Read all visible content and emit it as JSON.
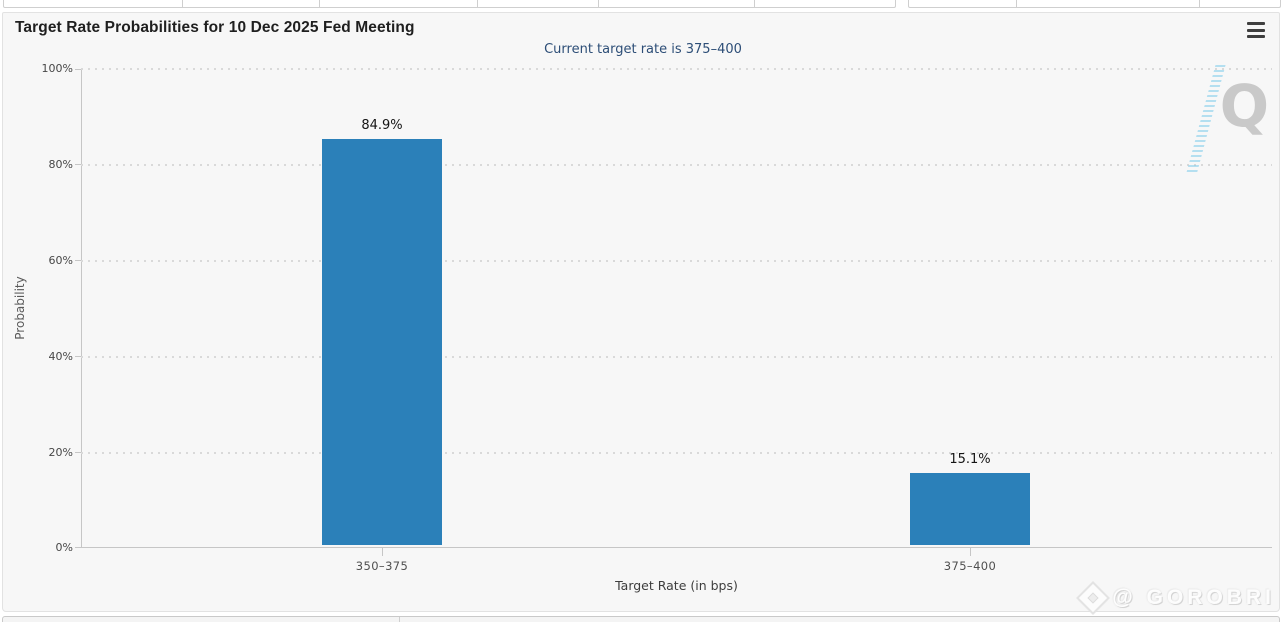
{
  "header": {
    "title": "Target Rate Probabilities for 10 Dec 2025 Fed Meeting",
    "menu_icon": "hamburger-menu-icon"
  },
  "chart_data": {
    "type": "bar",
    "title": "Target Rate Probabilities for 10 Dec 2025 Fed Meeting",
    "subtitle": "Current target rate is 375–400",
    "categories": [
      "350–375",
      "375–400"
    ],
    "values": [
      84.9,
      15.1
    ],
    "value_labels": [
      "84.9%",
      "15.1%"
    ],
    "xlabel": "Target Rate (in bps)",
    "ylabel": "Probability",
    "ylim": [
      0,
      100
    ],
    "ytick_labels": [
      "100%",
      "80%",
      "60%",
      "40%",
      "20%",
      "0%"
    ],
    "grid": "horizontal dotted",
    "legend": "none",
    "bar_color": "#2b80b9"
  },
  "watermarks": {
    "quikstrike_letter": "Q",
    "bottom_right_text": "@ GOROBRI"
  },
  "colors": {
    "bar": "#2b80b9",
    "panel_background": "#f7f7f7",
    "subtitle_text": "#2d4e77",
    "title_text": "#1f1f1f",
    "axis_text": "#4f4f4f",
    "gridline": "#d9d9d9",
    "watermark_swoosh": "#7dcbea"
  }
}
